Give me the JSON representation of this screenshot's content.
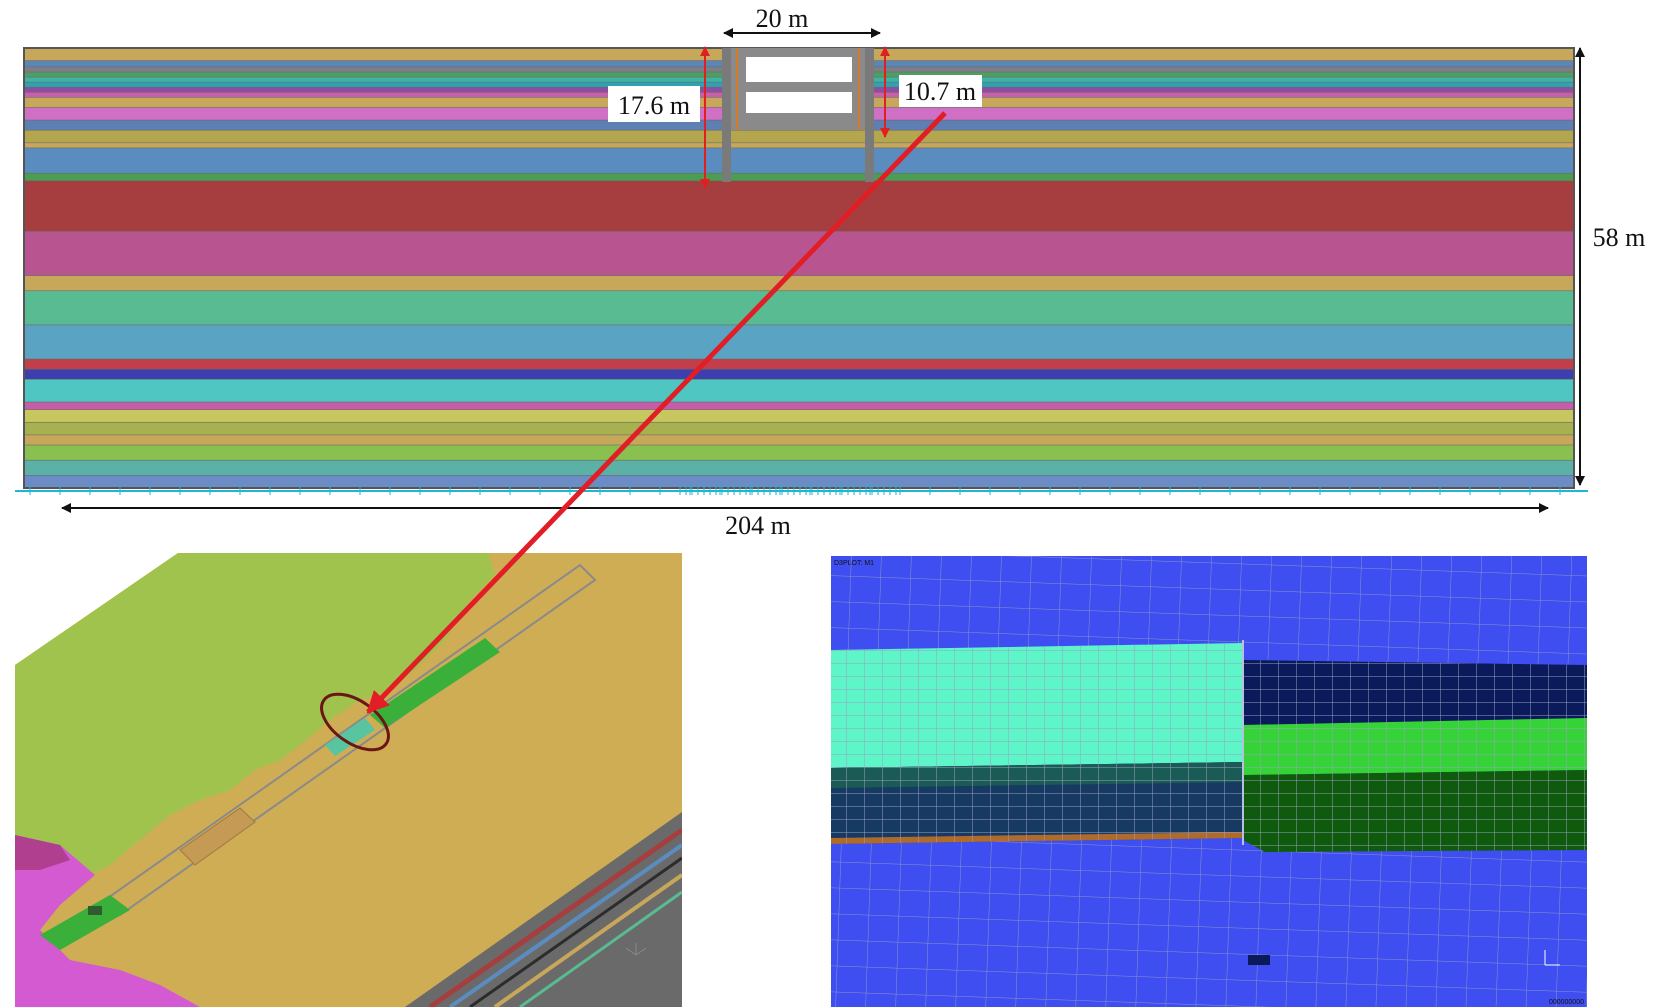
{
  "dimensions": {
    "top_width": "20 m",
    "left_depth": "17.6 m",
    "right_depth": "10.7 m",
    "height": "58 m",
    "length": "204 m"
  },
  "right_view": {
    "header": "D3PLOT: M1",
    "footer": "000000000"
  },
  "colors": {
    "layers": [
      "#c7a85a",
      "#5a86b8",
      "#7c7f85",
      "#4f9e62",
      "#3fb3a2",
      "#2ea3b5",
      "#8d4e9f",
      "#c85fae",
      "#c7a85a",
      "#cf6fc6",
      "#5e7fb2",
      "#b4a64f",
      "#c7a85a",
      "#5b8cc0",
      "#4a9e52",
      "#a63d3f",
      "#b85591",
      "#c7a85a",
      "#58bb91",
      "#5ba3c2",
      "#c43d4b",
      "#3d3fae",
      "#4fc6c1",
      "#c55da9",
      "#c6c85f",
      "#a7b150",
      "#c7a85a",
      "#8ac04f",
      "#5bb1a6",
      "#6b8cc4"
    ],
    "arrow": "#e11d25",
    "dimension_marker": "#e02020",
    "ellipse": "#6b1515",
    "mesh_blue": "#3e4ef0",
    "mesh_cyan": "#5ef5c9",
    "mesh_green": "#36d338",
    "mesh_dark_green": "#0f5a0c",
    "mesh_navy": "#0a1a5a",
    "mesh_dark_blue": "#163a62",
    "ground_green": "#a0c34e",
    "ground_tan": "#cfad55",
    "ground_pink": "#d35ad0"
  }
}
